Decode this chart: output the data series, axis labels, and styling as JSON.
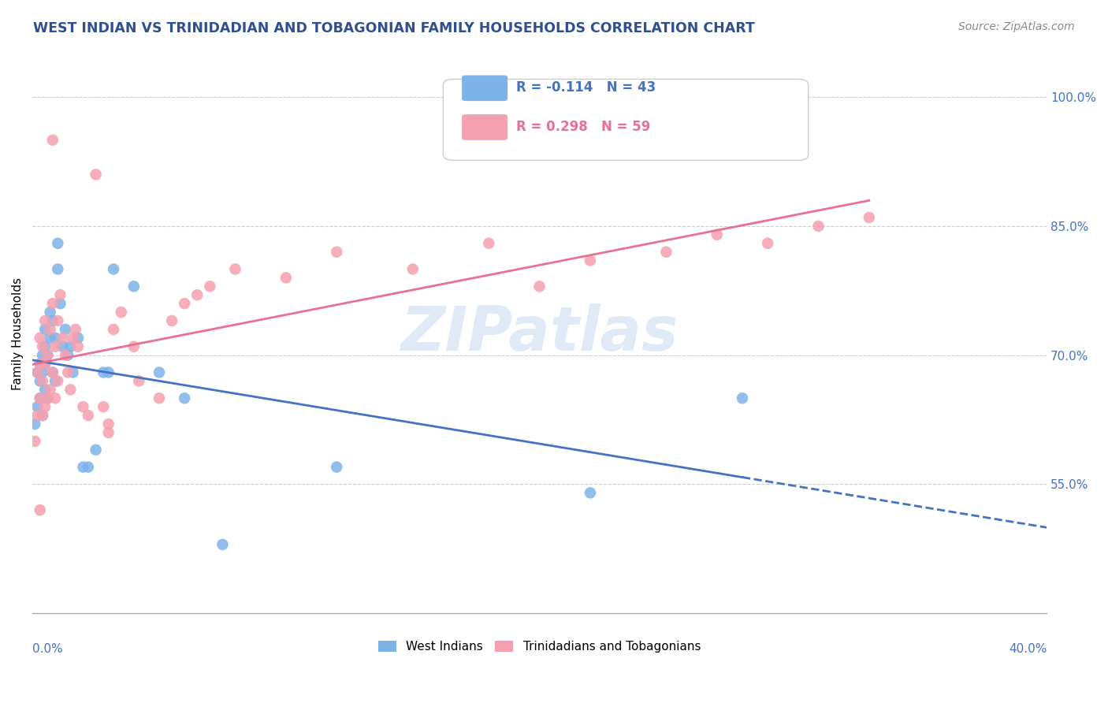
{
  "title": "WEST INDIAN VS TRINIDADIAN AND TOBAGONIAN FAMILY HOUSEHOLDS CORRELATION CHART",
  "source": "Source: ZipAtlas.com",
  "ylabel": "Family Households",
  "y_tick_labels": [
    "55.0%",
    "70.0%",
    "85.0%",
    "100.0%"
  ],
  "y_tick_values": [
    0.55,
    0.7,
    0.85,
    1.0
  ],
  "legend_blue_label": "West Indians",
  "legend_pink_label": "Trinidadians and Tobagonians",
  "R_blue": -0.114,
  "N_blue": 43,
  "R_pink": 0.298,
  "N_pink": 59,
  "color_blue": "#7EB3E8",
  "color_pink": "#F5A0B0",
  "color_blue_dark": "#4472C4",
  "color_pink_dark": "#E87090",
  "title_color": "#2F4F8F",
  "source_color": "#888888",
  "axis_label_color": "#4472C4",
  "watermark_color": "#C8D8F0",
  "west_indians_x": [
    0.001,
    0.002,
    0.002,
    0.003,
    0.003,
    0.003,
    0.004,
    0.004,
    0.004,
    0.005,
    0.005,
    0.005,
    0.005,
    0.006,
    0.006,
    0.007,
    0.007,
    0.008,
    0.008,
    0.009,
    0.009,
    0.01,
    0.01,
    0.011,
    0.012,
    0.013,
    0.014,
    0.015,
    0.016,
    0.018,
    0.02,
    0.022,
    0.025,
    0.028,
    0.03,
    0.032,
    0.04,
    0.05,
    0.06,
    0.075,
    0.12,
    0.22,
    0.28
  ],
  "west_indians_y": [
    0.62,
    0.68,
    0.64,
    0.65,
    0.67,
    0.69,
    0.63,
    0.68,
    0.7,
    0.66,
    0.69,
    0.71,
    0.73,
    0.65,
    0.7,
    0.72,
    0.75,
    0.68,
    0.74,
    0.67,
    0.72,
    0.8,
    0.83,
    0.76,
    0.71,
    0.73,
    0.7,
    0.71,
    0.68,
    0.72,
    0.57,
    0.57,
    0.59,
    0.68,
    0.68,
    0.8,
    0.78,
    0.68,
    0.65,
    0.48,
    0.57,
    0.54,
    0.65
  ],
  "trinidadians_x": [
    0.001,
    0.002,
    0.002,
    0.003,
    0.003,
    0.003,
    0.004,
    0.004,
    0.004,
    0.005,
    0.005,
    0.005,
    0.006,
    0.006,
    0.007,
    0.007,
    0.008,
    0.008,
    0.009,
    0.009,
    0.01,
    0.01,
    0.011,
    0.012,
    0.013,
    0.014,
    0.015,
    0.016,
    0.017,
    0.018,
    0.02,
    0.022,
    0.025,
    0.028,
    0.03,
    0.032,
    0.035,
    0.04,
    0.042,
    0.05,
    0.055,
    0.06,
    0.065,
    0.07,
    0.08,
    0.1,
    0.12,
    0.15,
    0.18,
    0.2,
    0.22,
    0.25,
    0.27,
    0.29,
    0.31,
    0.33,
    0.03,
    0.003,
    0.008
  ],
  "trinidadians_y": [
    0.6,
    0.63,
    0.68,
    0.65,
    0.69,
    0.72,
    0.63,
    0.67,
    0.71,
    0.64,
    0.69,
    0.74,
    0.65,
    0.7,
    0.66,
    0.73,
    0.68,
    0.76,
    0.65,
    0.71,
    0.67,
    0.74,
    0.77,
    0.72,
    0.7,
    0.68,
    0.66,
    0.72,
    0.73,
    0.71,
    0.64,
    0.63,
    0.91,
    0.64,
    0.61,
    0.73,
    0.75,
    0.71,
    0.67,
    0.65,
    0.74,
    0.76,
    0.77,
    0.78,
    0.8,
    0.79,
    0.82,
    0.8,
    0.83,
    0.78,
    0.81,
    0.82,
    0.84,
    0.83,
    0.85,
    0.86,
    0.62,
    0.52,
    0.95
  ]
}
